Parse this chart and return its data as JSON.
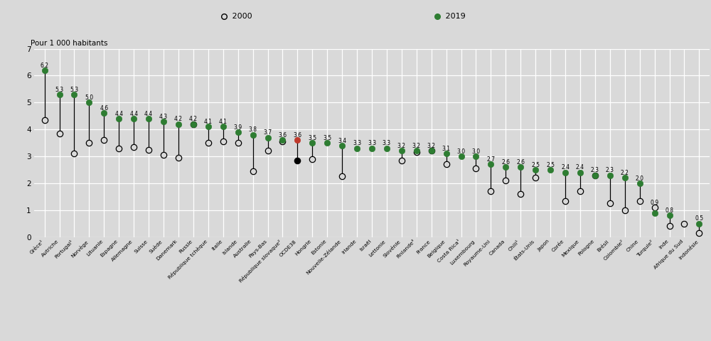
{
  "countries": [
    "Grèce¹",
    "Autriche",
    "Portugal¹",
    "Norvège",
    "Lituanie",
    "Espagne",
    "Allemagne",
    "Suisse",
    "Suède",
    "Danemark",
    "Russie",
    "République tchèque",
    "Italie",
    "Islande",
    "Australie",
    "Pays-Bas",
    "République slovaque²",
    "OCDE38",
    "Hongrie",
    "Estonie",
    "Nouvelle-Zélande",
    "Irlande",
    "Israël",
    "Lettonie",
    "Slovénie",
    "Finlande³",
    "France",
    "Belgique",
    "Costa Rica¹",
    "Luxembourg",
    "Royaume-Uni",
    "Canada",
    "Chili¹",
    "États-Unis",
    "Japon",
    "Corée",
    "Mexique",
    "Pologne",
    "Brésil",
    "Colombie²",
    "Chine",
    "Turquie²",
    "Inde",
    "Afrique du Sud",
    "Indonésie"
  ],
  "val_2019": [
    6.2,
    5.3,
    5.3,
    5.0,
    4.6,
    4.4,
    4.4,
    4.4,
    4.3,
    4.2,
    4.2,
    4.1,
    4.1,
    3.9,
    3.8,
    3.7,
    3.6,
    3.6,
    3.5,
    3.5,
    3.4,
    3.3,
    3.3,
    3.3,
    3.2,
    3.2,
    3.2,
    3.1,
    3.0,
    3.0,
    2.7,
    2.6,
    2.6,
    2.5,
    2.5,
    2.4,
    2.4,
    2.3,
    2.3,
    2.2,
    2.0,
    0.9,
    0.8,
    null,
    0.5
  ],
  "val_2000": [
    4.35,
    3.85,
    3.1,
    3.5,
    3.6,
    3.3,
    3.35,
    3.25,
    3.05,
    2.95,
    4.2,
    3.5,
    3.55,
    3.5,
    2.45,
    3.2,
    3.55,
    2.85,
    2.9,
    null,
    2.25,
    null,
    null,
    null,
    2.85,
    3.15,
    3.2,
    2.7,
    null,
    2.55,
    1.7,
    2.1,
    1.6,
    2.2,
    null,
    1.35,
    1.7,
    2.3,
    1.25,
    1.0,
    1.35,
    1.1,
    0.4,
    0.5,
    0.15
  ],
  "dot2019_colors": [
    "#2e7d32",
    "#2e7d32",
    "#2e7d32",
    "#2e7d32",
    "#2e7d32",
    "#2e7d32",
    "#2e7d32",
    "#2e7d32",
    "#2e7d32",
    "#2e7d32",
    "#2e7d32",
    "#2e7d32",
    "#2e7d32",
    "#2e7d32",
    "#2e7d32",
    "#2e7d32",
    "#2e7d32",
    "#c0392b",
    "#2e7d32",
    "#2e7d32",
    "#2e7d32",
    "#2e7d32",
    "#2e7d32",
    "#2e7d32",
    "#2e7d32",
    "#2e7d32",
    "#2e7d32",
    "#2e7d32",
    "#2e7d32",
    "#2e7d32",
    "#2e7d32",
    "#2e7d32",
    "#2e7d32",
    "#2e7d32",
    "#2e7d32",
    "#2e7d32",
    "#2e7d32",
    "#2e7d32",
    "#2e7d32",
    "#2e7d32",
    "#2e7d32",
    "#2e7d32",
    "#2e7d32",
    null,
    "#2e7d32"
  ],
  "dot2000_special_black_idx": 17,
  "background_color": "#d9d9d9",
  "header_color": "#c8c8c8",
  "green_color": "#2e7d32",
  "red_color": "#c0392b",
  "ylabel_text": "Pour 1 000 habitants",
  "ylim": [
    0,
    7
  ],
  "yticks": [
    0,
    1,
    2,
    3,
    4,
    5,
    6,
    7
  ],
  "legend_2000_label": "2000",
  "legend_2019_label": "2019",
  "label_fontsize": 5.5,
  "xtick_fontsize": 5.4,
  "ytick_fontsize": 7.5,
  "ylabel_fontsize": 7.5,
  "dot_size": 6.0,
  "line_width": 0.9
}
